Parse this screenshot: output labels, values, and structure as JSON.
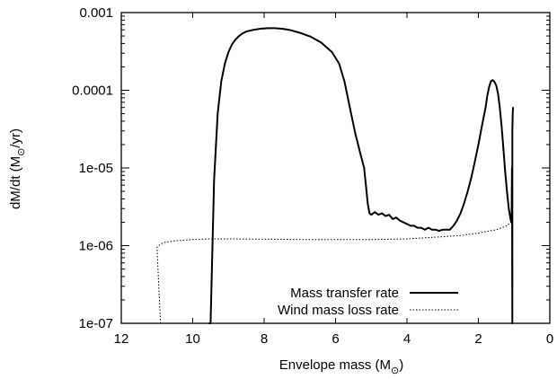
{
  "chart_data": {
    "type": "line",
    "xlabel_main": "Envelope mass (M",
    "xlabel_sub": "⊙",
    "xlabel_end": ")",
    "ylabel_main": "dM/dt (M",
    "ylabel_sub": "⊙",
    "ylabel_end": "/yr)",
    "x_range": [
      12,
      0
    ],
    "y_range": [
      1e-07,
      0.001
    ],
    "y_scale": "log",
    "x_ticks": [
      "12",
      "10",
      "8",
      "6",
      "4",
      "2",
      "0"
    ],
    "y_ticks": [
      "0.001",
      "0.0001",
      "1e-05",
      "1e-06",
      "1e-07"
    ],
    "legend_position": "bottom-right",
    "series": [
      {
        "name": "Mass transfer rate",
        "style": "solid",
        "x": [
          9.55,
          9.5,
          9.4,
          9.3,
          9.2,
          9.1,
          9.0,
          8.9,
          8.8,
          8.7,
          8.6,
          8.5,
          8.3,
          8.1,
          7.9,
          7.7,
          7.5,
          7.3,
          7.0,
          6.7,
          6.4,
          6.1,
          5.9,
          5.75,
          5.6,
          5.45,
          5.3,
          5.2,
          5.15,
          5.1,
          5.05,
          5.0,
          4.9,
          4.8,
          4.7,
          4.6,
          4.5,
          4.4,
          4.3,
          4.2,
          4.1,
          4.0,
          3.9,
          3.8,
          3.7,
          3.6,
          3.5,
          3.4,
          3.3,
          3.2,
          3.1,
          3.0,
          2.9,
          2.8,
          2.7,
          2.6,
          2.5,
          2.4,
          2.3,
          2.2,
          2.1,
          2.0,
          1.9,
          1.8,
          1.75,
          1.7,
          1.65,
          1.6,
          1.55,
          1.5,
          1.45,
          1.4,
          1.35,
          1.3,
          1.25,
          1.2,
          1.15,
          1.1,
          1.08,
          1.07,
          1.06,
          1.05,
          1.05,
          1.04,
          1.03,
          1.02
        ],
        "y": [
          1e-07,
          1e-07,
          7e-06,
          5e-05,
          0.00013,
          0.00022,
          0.00031,
          0.00039,
          0.00045,
          0.0005,
          0.00054,
          0.00057,
          0.0006,
          0.00062,
          0.00063,
          0.00063,
          0.00062,
          0.0006,
          0.00055,
          0.00049,
          0.00041,
          0.00031,
          0.00022,
          0.00013,
          6e-05,
          2.8e-05,
          1.5e-05,
          1e-05,
          6e-06,
          3.5e-06,
          2.6e-06,
          2.5e-06,
          2.7e-06,
          2.5e-06,
          2.6e-06,
          2.4e-06,
          2.5e-06,
          2.2e-06,
          2.3e-06,
          2.1e-06,
          2e-06,
          1.9e-06,
          1.8e-06,
          1.8e-06,
          1.7e-06,
          1.7e-06,
          1.6e-06,
          1.7e-06,
          1.6e-06,
          1.6e-06,
          1.55e-06,
          1.6e-06,
          1.6e-06,
          1.6e-06,
          1.8e-06,
          2.1e-06,
          2.6e-06,
          3.5e-06,
          5e-06,
          7.5e-06,
          1.2e-05,
          2e-05,
          3.5e-05,
          6e-05,
          8.5e-05,
          0.00011,
          0.00013,
          0.000135,
          0.000128,
          0.000115,
          9e-05,
          6e-05,
          3.5e-05,
          1.8e-05,
          9e-06,
          5e-06,
          3e-06,
          2.2e-06,
          2e-06,
          2.5e-06,
          1e-05,
          1e-07,
          3e-05,
          5e-05,
          6e-05,
          6e-05
        ]
      },
      {
        "name": "Wind mass loss rate",
        "style": "dotted",
        "x": [
          10.9,
          10.95,
          11.0,
          10.9,
          10.8,
          10.5,
          10.0,
          9.5,
          9.0,
          8.0,
          7.0,
          6.0,
          5.0,
          4.0,
          3.0,
          2.5,
          2.0,
          1.5,
          1.2,
          1.05
        ],
        "y": [
          1e-07,
          3e-07,
          9.5e-07,
          1.05e-06,
          1.1e-06,
          1.15e-06,
          1.2e-06,
          1.22e-06,
          1.22e-06,
          1.21e-06,
          1.2e-06,
          1.2e-06,
          1.2e-06,
          1.22e-06,
          1.3e-06,
          1.35e-06,
          1.45e-06,
          1.6e-06,
          1.8e-06,
          2.1e-06
        ]
      }
    ]
  }
}
